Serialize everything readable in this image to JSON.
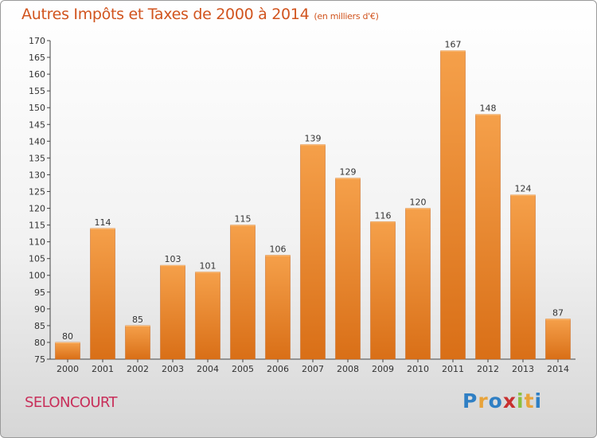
{
  "header": {
    "title": "Autres Impôts et Taxes de 2000 à 2014",
    "subtitle": "(en milliers d'€)"
  },
  "footer": {
    "commune": "SELONCOURT",
    "logo_letters": [
      {
        "ch": "P",
        "color": "#2f7fc4"
      },
      {
        "ch": "r",
        "color": "#e8a33a"
      },
      {
        "ch": "o",
        "color": "#2f7fc4"
      },
      {
        "ch": "x",
        "color": "#c8302f"
      },
      {
        "ch": "i",
        "color": "#8cbf3f"
      },
      {
        "ch": "t",
        "color": "#e8a33a"
      },
      {
        "ch": "i",
        "color": "#2f7fc4"
      }
    ]
  },
  "chart_data": {
    "type": "bar",
    "title": "Autres Impôts et Taxes de 2000 à 2014",
    "subtitle": "(en milliers d'€)",
    "categories": [
      "2000",
      "2001",
      "2002",
      "2003",
      "2004",
      "2005",
      "2006",
      "2007",
      "2008",
      "2009",
      "2010",
      "2011",
      "2012",
      "2013",
      "2014"
    ],
    "values": [
      80,
      114,
      85,
      103,
      101,
      115,
      106,
      139,
      129,
      116,
      120,
      167,
      148,
      124,
      87
    ],
    "ylim": [
      75,
      170
    ],
    "ytick_step": 5,
    "grid": false,
    "bar_color": "#f0953a"
  }
}
